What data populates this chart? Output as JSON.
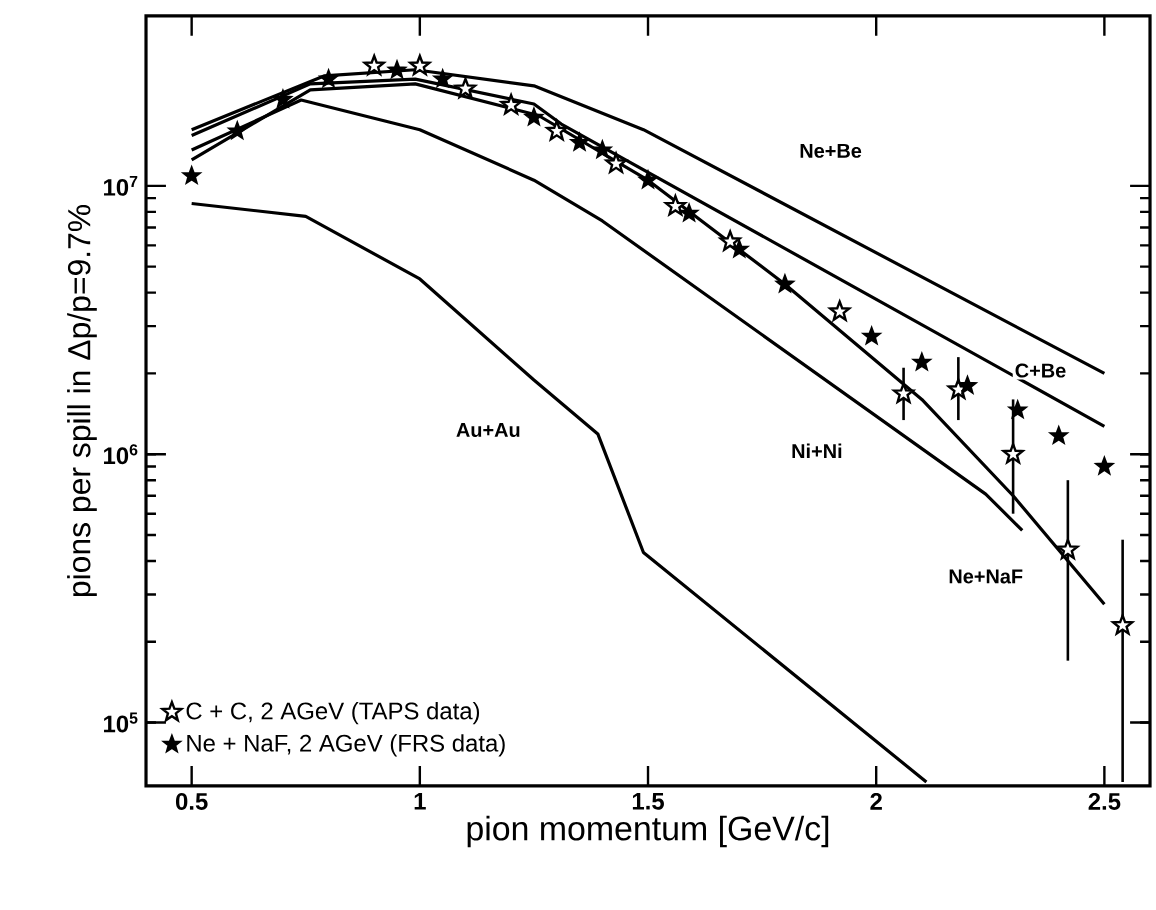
{
  "chart_data": {
    "type": "line",
    "xlabel": "pion momentum [GeV/c]",
    "ylabel": "pions per spill in Δp/p=9.7%",
    "log": "y",
    "xlim": [
      0.4,
      2.6
    ],
    "ylim": [
      58000,
      43000000
    ],
    "xticks": [
      0.5,
      1,
      1.5,
      2,
      2.5
    ],
    "yticks": [
      {
        "value": 100000,
        "label": "10$^{5}$"
      },
      {
        "value": 1000000,
        "label": "10$^{6}$"
      },
      {
        "value": 10000000,
        "label": "10$^{7}$"
      }
    ],
    "legend": "bottom left",
    "line_style": "solid",
    "series": [
      {
        "name": "Ne+Be",
        "color": "#000000",
        "x": [
          0.5,
          0.79,
          0.99,
          1.25,
          1.49,
          2.5
        ],
        "values": [
          16200000,
          25700000,
          27100000,
          23600000,
          16200000,
          2000000
        ]
      },
      {
        "name": "C+Be",
        "color": "#000000",
        "x": [
          0.5,
          0.76,
          0.99,
          1.25,
          1.31,
          2.5
        ],
        "values": [
          15400000,
          24000000,
          25000000,
          20200000,
          17000000,
          1270000
        ]
      },
      {
        "name": "Ne+NaF",
        "color": "#000000",
        "x": [
          0.5,
          0.76,
          0.99,
          1.26,
          1.5,
          1.8,
          2.1,
          2.3,
          2.5
        ],
        "values": [
          12500000,
          22800000,
          24000000,
          18300000,
          10500000,
          4300000,
          1600000,
          700000,
          276000
        ]
      },
      {
        "name": "Ni+Ni",
        "color": "#000000",
        "x": [
          0.5,
          0.74,
          1.0,
          1.25,
          1.4,
          2.24,
          2.32
        ],
        "values": [
          13600000,
          20900000,
          16200000,
          10500000,
          7400000,
          710000,
          520000
        ]
      },
      {
        "name": "Au+Au",
        "color": "#000000",
        "x": [
          0.5,
          0.75,
          1.0,
          1.25,
          1.39,
          1.49,
          2.11
        ],
        "values": [
          8600000,
          7700000,
          4500000,
          1890000,
          1190000,
          430000,
          60000
        ]
      },
      {
        "name": "C + C, 2 AGeV (TAPS data)",
        "type": "scatter",
        "marker": "star",
        "color": "#000000",
        "x": [
          0.9,
          1.0,
          1.1,
          1.2,
          1.3,
          1.43,
          1.56,
          1.68,
          1.92,
          2.06,
          2.18,
          2.3,
          2.42,
          2.54
        ],
        "values": [
          28000000,
          28000000,
          23000000,
          20000000,
          16000000,
          12100000,
          8400000,
          6200000,
          3400000,
          1680000,
          1740000,
          1000000,
          440000,
          230000
        ],
        "errors": [
          null,
          null,
          null,
          null,
          null,
          null,
          null,
          null,
          null,
          [
            1340000,
            2100000
          ],
          [
            1340000,
            2300000
          ],
          [
            600000,
            1600000
          ],
          [
            170000,
            800000
          ],
          [
            60000,
            480000
          ]
        ]
      },
      {
        "name": "Ne + NaF, 2 AGeV (FRS data)",
        "type": "scatter",
        "marker": "star",
        "color": "#000000",
        "x": [
          0.5,
          0.6,
          0.7,
          0.8,
          0.95,
          1.05,
          1.25,
          1.35,
          1.4,
          1.5,
          1.59,
          1.7,
          1.8,
          1.99,
          2.1,
          2.2,
          2.31,
          2.4,
          2.5
        ],
        "values": [
          10900000,
          16000000,
          21000000,
          25000000,
          27000000,
          25000000,
          18000000,
          14500000,
          13600000,
          10500000,
          7900000,
          5800000,
          4300000,
          2750000,
          2200000,
          1800000,
          1460000,
          1170000,
          900000
        ]
      }
    ]
  }
}
